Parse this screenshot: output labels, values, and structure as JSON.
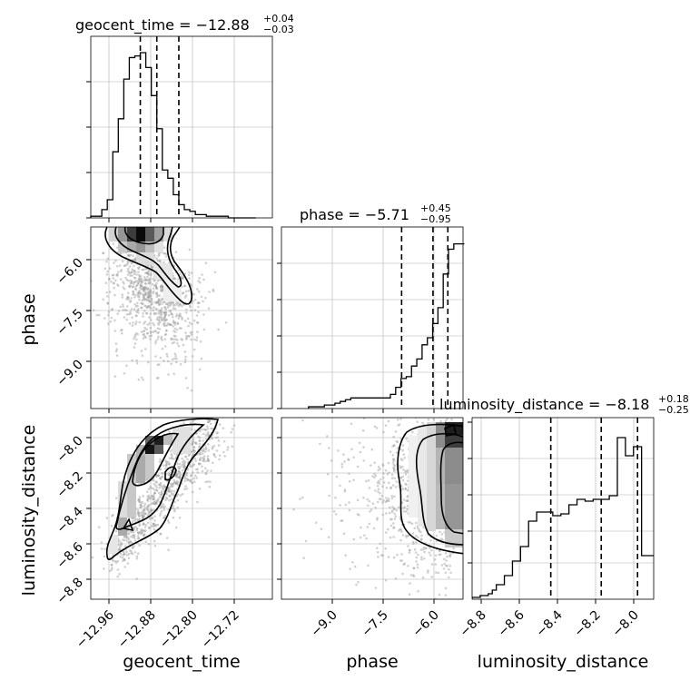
{
  "chart_data": {
    "type": "corner",
    "parameters": [
      "geocent_time",
      "phase",
      "luminosity_distance"
    ],
    "axis_labels": {
      "geocent_time": "geocent_time",
      "phase": "phase",
      "luminosity_distance": "luminosity_distance"
    },
    "ticks": {
      "geocent_time": [
        "−12.96",
        "−12.88",
        "−12.80",
        "−12.72"
      ],
      "phase": [
        "−9.0",
        "−7.5",
        "−6.0"
      ],
      "luminosity_distance": [
        "−8.8",
        "−8.6",
        "−8.4",
        "−8.2",
        "−8.0"
      ],
      "luminosity_distance_yaxis": [
        "−8.0",
        "−8.2",
        "−8.4",
        "−8.6",
        "−8.8"
      ]
    },
    "titles": [
      {
        "param": "geocent_time",
        "main": "geocent_time = −12.88",
        "plus": "+0.04",
        "minus": "−0.03"
      },
      {
        "param": "phase",
        "main": "phase = −5.71",
        "plus": "+0.45",
        "minus": "−0.95"
      },
      {
        "param": "luminosity_distance",
        "main": "luminosity_distance = −8.18",
        "plus": "+0.18",
        "minus": "−0.25"
      }
    ],
    "histograms": {
      "geocent_time": {
        "edges": [
          -13.0,
          -12.99,
          -12.98,
          -12.97,
          -12.96,
          -12.95,
          -12.94,
          -12.93,
          -12.92,
          -12.91,
          -12.9,
          -12.89,
          -12.88,
          -12.87,
          -12.86,
          -12.85,
          -12.84,
          -12.83,
          -12.82,
          -12.81,
          -12.8,
          -12.79,
          -12.78,
          -12.77,
          -12.76,
          -12.75,
          -12.74,
          -12.73,
          -12.72,
          -12.71,
          -12.7
        ],
        "values": [
          0.01,
          0.01,
          0.05,
          0.11,
          0.4,
          0.6,
          0.84,
          0.97,
          0.98,
          1.0,
          0.91,
          0.74,
          0.54,
          0.29,
          0.24,
          0.14,
          0.08,
          0.05,
          0.04,
          0.02,
          0.02,
          0.01,
          0.01,
          0.01,
          0.01,
          0.0,
          0.0,
          0.0,
          0.0,
          0.0
        ],
        "quantiles": [
          -12.91,
          -12.88,
          -12.84
        ]
      },
      "phase": {
        "edges": [
          -9.48,
          -9.32,
          -9.16,
          -9.0,
          -8.84,
          -8.68,
          -8.52,
          -8.36,
          -8.2,
          -7.0,
          -6.84,
          -6.68,
          -6.52,
          -6.36,
          -6.2,
          -6.04,
          -5.88,
          -5.72,
          -5.56,
          -5.4,
          -5.24,
          -5.08,
          -4.92,
          -4.76
        ],
        "values": [
          0.01,
          0.01,
          0.01,
          0.02,
          0.02,
          0.03,
          0.04,
          0.05,
          0.06,
          0.08,
          0.12,
          0.17,
          0.18,
          0.24,
          0.28,
          0.36,
          0.4,
          0.48,
          0.57,
          0.76,
          0.9,
          0.93,
          0.93
        ],
        "quantiles": [
          -6.66,
          -5.71,
          -5.26
        ]
      },
      "luminosity_distance": {
        "edges": [
          -8.82,
          -8.8,
          -8.78,
          -8.76,
          -8.74,
          -8.72,
          -8.7,
          -8.68,
          -8.66,
          -8.64,
          -8.62,
          -8.6,
          -8.58,
          -8.56,
          -8.54,
          -8.52,
          -8.5,
          -8.48,
          -8.46,
          -8.44,
          -8.42,
          -8.4,
          -8.38,
          -8.36,
          -8.34,
          -8.32,
          -8.3,
          -8.28,
          -8.26,
          -8.24,
          -8.22,
          -8.2,
          -8.18,
          -8.16,
          -8.14,
          -8.12,
          -8.1,
          -8.08,
          -8.06,
          -8.04,
          -8.02,
          -8.0,
          -7.98,
          -7.96,
          -7.94,
          -7.92
        ],
        "values": [
          0.01,
          0.01,
          0.02,
          0.02,
          0.03,
          0.05,
          0.08,
          0.08,
          0.13,
          0.13,
          0.21,
          0.21,
          0.29,
          0.29,
          0.43,
          0.43,
          0.48,
          0.48,
          0.48,
          0.48,
          0.46,
          0.46,
          0.47,
          0.47,
          0.52,
          0.52,
          0.55,
          0.55,
          0.54,
          0.54,
          0.55,
          0.55,
          0.55,
          0.55,
          0.57,
          0.57,
          0.89,
          0.89,
          0.79,
          0.79,
          0.84,
          0.84,
          0.24,
          0.24,
          0.24
        ],
        "quantiles": [
          -8.43,
          -8.18,
          -8.0
        ]
      }
    },
    "axis_ranges": {
      "geocent_time": [
        -13.0,
        -12.67
      ],
      "phase": [
        -10.3,
        -4.8
      ],
      "luminosity_distance": [
        -8.82,
        -7.92
      ]
    },
    "grid": true
  }
}
